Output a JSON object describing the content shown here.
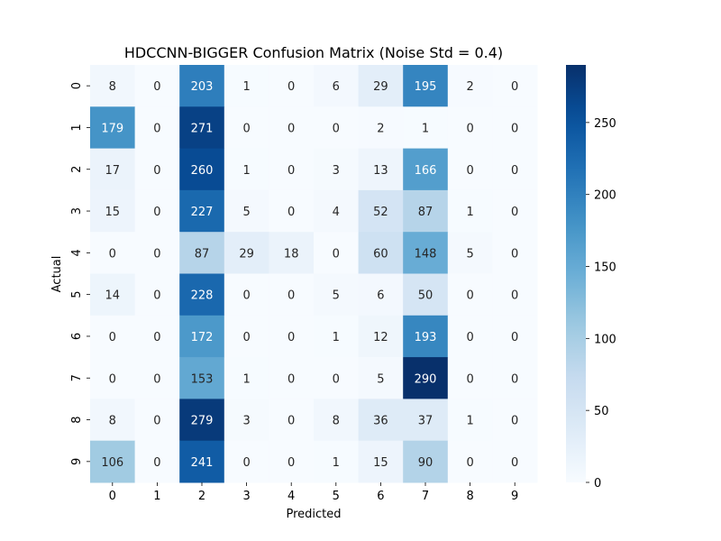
{
  "chart_data": {
    "type": "heatmap",
    "title": "HDCCNN-BIGGER Confusion Matrix (Noise Std = 0.4)",
    "xlabel": "Predicted",
    "ylabel": "Actual",
    "x_categories": [
      "0",
      "1",
      "2",
      "3",
      "4",
      "5",
      "6",
      "7",
      "8",
      "9"
    ],
    "y_categories": [
      "0",
      "1",
      "2",
      "3",
      "4",
      "5",
      "6",
      "7",
      "8",
      "9"
    ],
    "matrix": [
      [
        8,
        0,
        203,
        1,
        0,
        6,
        29,
        195,
        2,
        0
      ],
      [
        179,
        0,
        271,
        0,
        0,
        0,
        2,
        1,
        0,
        0
      ],
      [
        17,
        0,
        260,
        1,
        0,
        3,
        13,
        166,
        0,
        0
      ],
      [
        15,
        0,
        227,
        5,
        0,
        4,
        52,
        87,
        1,
        0
      ],
      [
        0,
        0,
        87,
        29,
        18,
        0,
        60,
        148,
        5,
        0
      ],
      [
        14,
        0,
        228,
        0,
        0,
        5,
        6,
        50,
        0,
        0
      ],
      [
        0,
        0,
        172,
        0,
        0,
        1,
        12,
        193,
        0,
        0
      ],
      [
        0,
        0,
        153,
        1,
        0,
        0,
        5,
        290,
        0,
        0
      ],
      [
        8,
        0,
        279,
        3,
        0,
        8,
        36,
        37,
        1,
        0
      ],
      [
        106,
        0,
        241,
        0,
        0,
        1,
        15,
        90,
        0,
        0
      ]
    ],
    "colormap": "Blues",
    "colorbar": {
      "min": 0,
      "max": 290,
      "ticks": [
        0,
        50,
        100,
        150,
        200,
        250
      ]
    }
  },
  "colors": {
    "text_dark": "#262626",
    "text_light": "#ffffff"
  }
}
